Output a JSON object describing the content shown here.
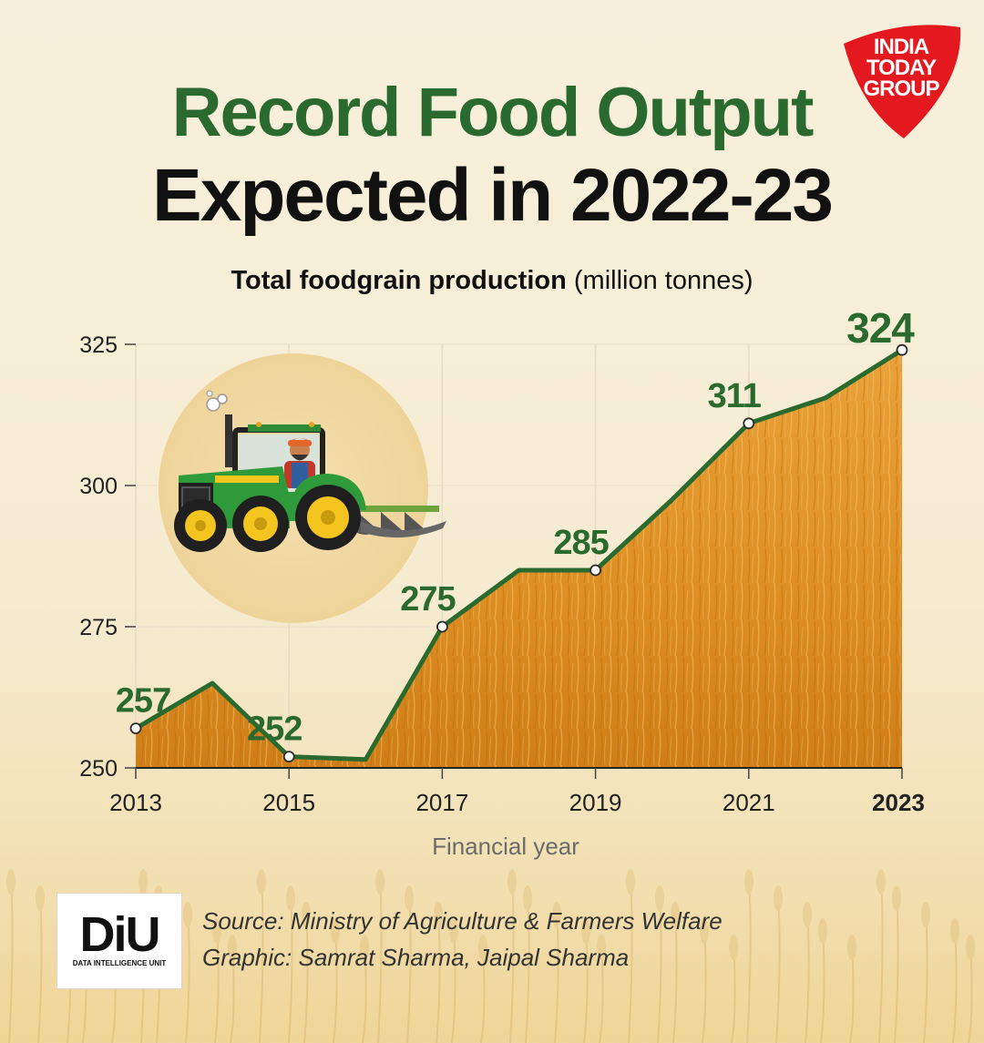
{
  "header": {
    "title_line1": "Record Food Output",
    "title_line2": "Expected in 2022-23",
    "subtitle_bold": "Total foodgrain production",
    "subtitle_unit": "(million tonnes)"
  },
  "logo": {
    "line1": "INDIA",
    "line2": "TODAY",
    "line3": "GROUP",
    "color": "#e4181f"
  },
  "chart_data": {
    "type": "area",
    "title": "Total foodgrain production",
    "ylabel": "(million tonnes)",
    "xlabel": "Financial year",
    "x": [
      2013,
      2014,
      2015,
      2016,
      2017,
      2018,
      2019,
      2020,
      2021,
      2022,
      2023
    ],
    "values": [
      257,
      265,
      252,
      251.5,
      275,
      285,
      285,
      297.5,
      311,
      315.5,
      324
    ],
    "labeled_points": [
      {
        "x": 2013,
        "label": "257"
      },
      {
        "x": 2015,
        "label": "252"
      },
      {
        "x": 2017,
        "label": "275"
      },
      {
        "x": 2019,
        "label": "285"
      },
      {
        "x": 2021,
        "label": "311"
      },
      {
        "x": 2023,
        "label": "324"
      }
    ],
    "x_ticks": [
      "2013",
      "2015",
      "2017",
      "2019",
      "2021",
      "2023"
    ],
    "y_ticks": [
      "250",
      "275",
      "300",
      "325"
    ],
    "ylim": [
      250,
      325
    ],
    "xlim": [
      2013,
      2023
    ],
    "grid": true,
    "line_color": "#2b6a2f",
    "fill_color": "#e0962a",
    "label_color": "#2b6a2f"
  },
  "footer": {
    "diu_letters": "DiU",
    "diu_sub": "DATA INTELLIGENCE UNIT",
    "source": "Source: Ministry of Agriculture & Farmers Welfare",
    "graphic": "Graphic: Samrat Sharma, Jaipal Sharma"
  }
}
